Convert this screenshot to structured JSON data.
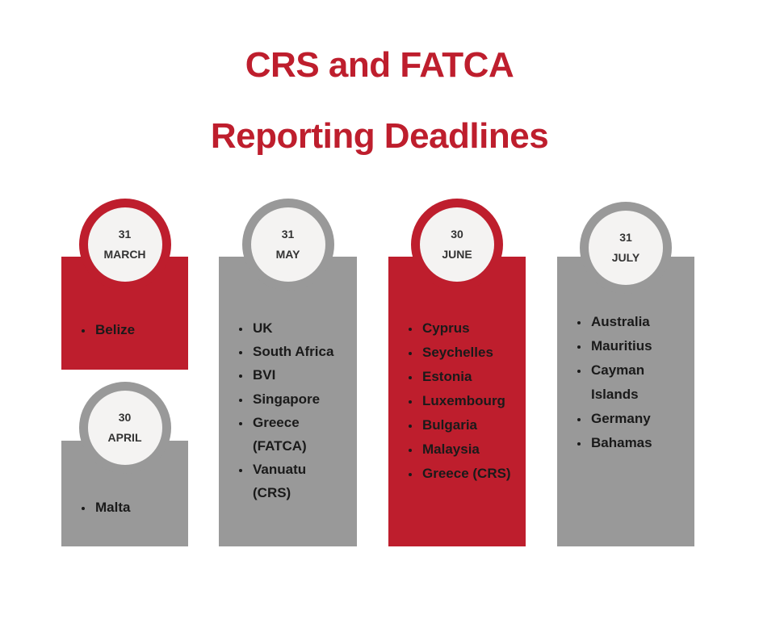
{
  "header": {
    "title_line1": "CRS and FATCA",
    "title_line2": "Reporting Deadlines"
  },
  "cards": [
    {
      "day": "31",
      "month": "MARCH",
      "items": [
        "Belize"
      ]
    },
    {
      "day": "30",
      "month": "APRIL",
      "items": [
        "Malta"
      ]
    },
    {
      "day": "31",
      "month": "MAY",
      "items": [
        "UK",
        "South Africa",
        "BVI",
        "Singapore",
        "Greece (FATCA)",
        "Vanuatu (CRS)"
      ]
    },
    {
      "day": "30",
      "month": "JUNE",
      "items": [
        "Cyprus",
        "Seychelles",
        "Estonia",
        "Luxembourg",
        "Bulgaria",
        "Malaysia",
        "Greece (CRS)"
      ]
    },
    {
      "day": "31",
      "month": "JULY",
      "items": [
        "Australia",
        "Mauritius",
        "Cayman Islands",
        "Germany",
        "Bahamas"
      ]
    }
  ]
}
